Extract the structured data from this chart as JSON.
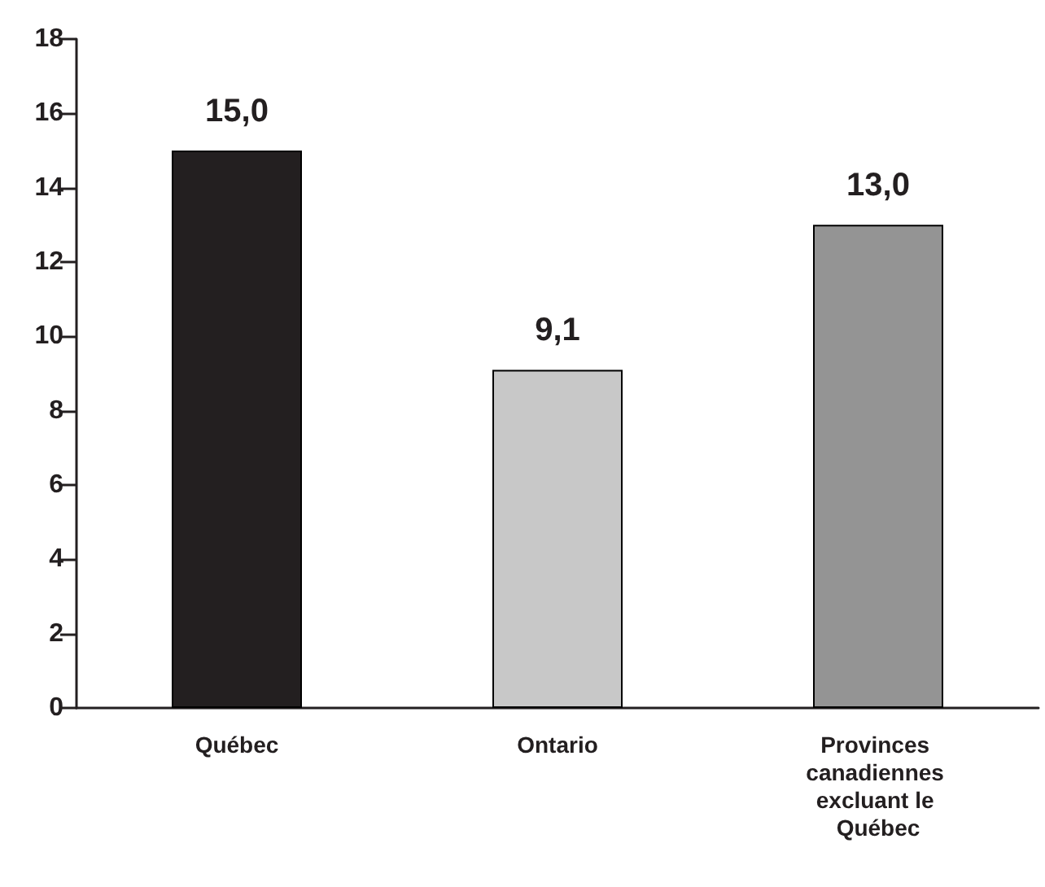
{
  "chart_data": {
    "type": "bar",
    "categories": [
      "Québec",
      "Ontario",
      "Provinces canadiennes excluant le Québec"
    ],
    "values": [
      15.0,
      9.1,
      13.0
    ],
    "colors": [
      "#231f20",
      "#c8c8c8",
      "#949494"
    ],
    "value_labels": [
      "15,0",
      "9,1",
      "13,0"
    ],
    "ylim": [
      0,
      18
    ],
    "yticks": [
      0,
      2,
      4,
      6,
      8,
      10,
      12,
      14,
      16,
      18
    ]
  }
}
